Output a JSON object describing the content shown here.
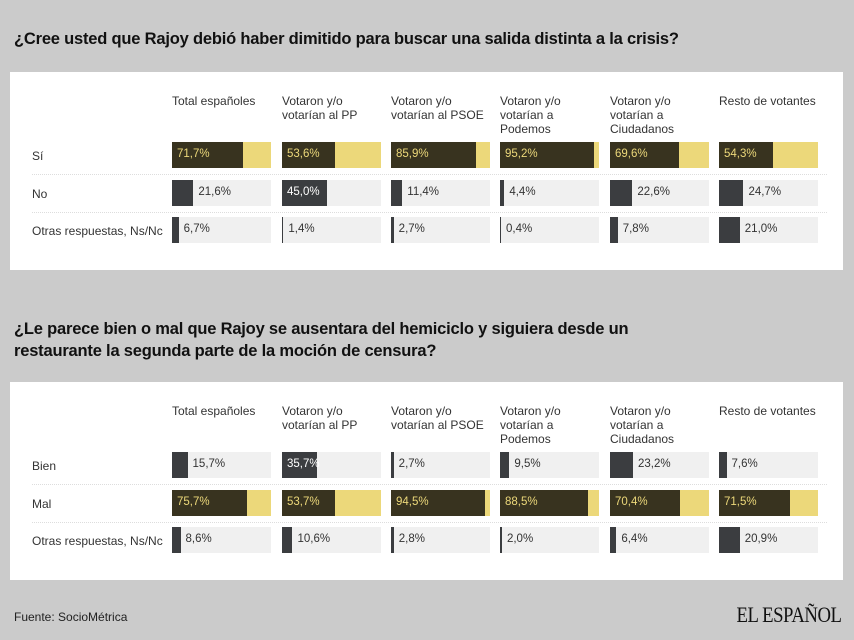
{
  "columns": [
    "Total españoles",
    "Votaron y/o votarían al PP",
    "Votaron y/o votarían al PSOE",
    "Votaron y/o votarían a Podemos",
    "Votaron y/o votarían a Ciudadanos",
    "Resto de votantes"
  ],
  "colors": {
    "background": "#cbcbcb",
    "highlight_bar": "#38331f",
    "highlight_track": "#ecd87a",
    "bar": "#3b3d40",
    "track": "#f0f0f0"
  },
  "chart_data": [
    {
      "type": "bar",
      "title": "¿Cree usted que Rajoy debió haber dimitido para buscar una salida distinta a la crisis?",
      "unit": "%",
      "ylim": [
        0,
        100
      ],
      "categories": [
        "Total españoles",
        "Votaron y/o votarían al PP",
        "Votaron y/o votarían al PSOE",
        "Votaron y/o votarían a Podemos",
        "Votaron y/o votarían a Ciudadanos",
        "Resto de votantes"
      ],
      "series": [
        {
          "name": "Sí",
          "highlight": true,
          "values": [
            71.7,
            53.6,
            85.9,
            95.2,
            69.6,
            54.3
          ],
          "labels": [
            "71,7%",
            "53,6%",
            "85,9%",
            "95,2%",
            "69,6%",
            "54,3%"
          ]
        },
        {
          "name": "No",
          "values": [
            21.6,
            45.0,
            11.4,
            4.4,
            22.6,
            24.7
          ],
          "labels": [
            "21,6%",
            "45,0%",
            "11,4%",
            "4,4%",
            "22,6%",
            "24,7%"
          ]
        },
        {
          "name": "Otras respuestas, Ns/Nc",
          "values": [
            6.7,
            1.4,
            2.7,
            0.4,
            7.8,
            21.0
          ],
          "labels": [
            "6,7%",
            "1,4%",
            "2,7%",
            "0,4%",
            "7,8%",
            "21,0%"
          ]
        }
      ]
    },
    {
      "type": "bar",
      "title": "¿Le parece bien o mal que Rajoy se ausentara del hemiciclo y siguiera desde un restaurante la segunda parte de la moción de censura?",
      "unit": "%",
      "ylim": [
        0,
        100
      ],
      "categories": [
        "Total españoles",
        "Votaron y/o votarían al PP",
        "Votaron y/o votarían al PSOE",
        "Votaron y/o votarían a Podemos",
        "Votaron y/o votarían a Ciudadanos",
        "Resto de votantes"
      ],
      "series": [
        {
          "name": "Bien",
          "values": [
            15.7,
            35.7,
            2.7,
            9.5,
            23.2,
            7.6
          ],
          "labels": [
            "15,7%",
            "35,7%",
            "2,7%",
            "9,5%",
            "23,2%",
            "7,6%"
          ]
        },
        {
          "name": "Mal",
          "highlight": true,
          "values": [
            75.7,
            53.7,
            94.5,
            88.5,
            70.4,
            71.5
          ],
          "labels": [
            "75,7%",
            "53,7%",
            "94,5%",
            "88,5%",
            "70,4%",
            "71,5%"
          ]
        },
        {
          "name": "Otras respuestas, Ns/Nc",
          "values": [
            8.6,
            10.6,
            2.8,
            2.0,
            6.4,
            20.9
          ],
          "labels": [
            "8,6%",
            "10,6%",
            "2,8%",
            "2,0%",
            "6,4%",
            "20,9%"
          ]
        }
      ]
    }
  ],
  "footer": {
    "source": "Fuente: SocioMétrica",
    "logo": "EL ESPAÑOL"
  }
}
